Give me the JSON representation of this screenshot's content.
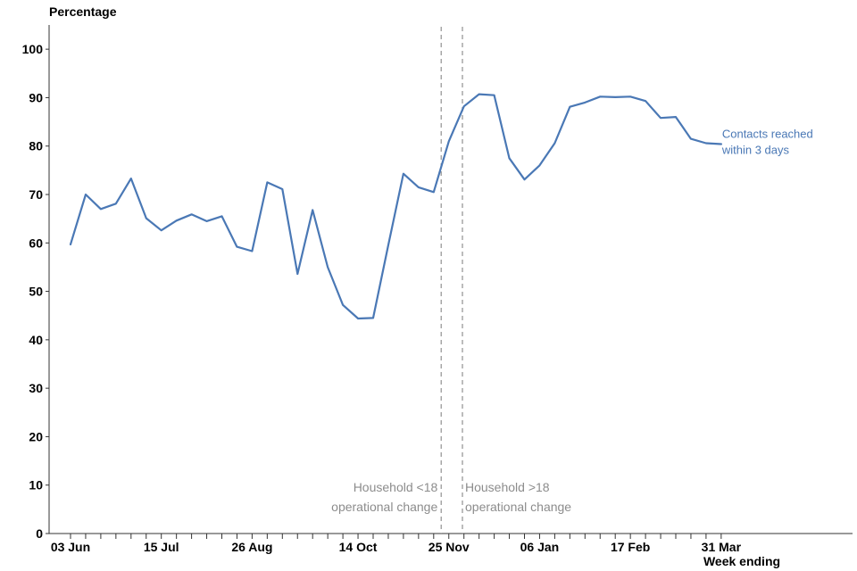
{
  "chart_data": {
    "type": "line",
    "ylabel": "Percentage",
    "xlabel": "Week ending",
    "ylim": [
      0,
      105
    ],
    "yticks": [
      0,
      10,
      20,
      30,
      40,
      50,
      60,
      70,
      80,
      90,
      100
    ],
    "x_tick_labels": [
      {
        "index": 0,
        "label": "03 Jun"
      },
      {
        "index": 6,
        "label": "15 Jul"
      },
      {
        "index": 12,
        "label": "26 Aug"
      },
      {
        "index": 19,
        "label": "14 Oct"
      },
      {
        "index": 25,
        "label": "25 Nov"
      },
      {
        "index": 31,
        "label": "06 Jan"
      },
      {
        "index": 37,
        "label": "17 Feb"
      },
      {
        "index": 43,
        "label": "31 Mar"
      }
    ],
    "series": [
      {
        "name": "Contacts reached within 3 days",
        "label_lines": [
          "Contacts reached",
          "within 3 days"
        ],
        "color": "#4a78b5",
        "values": [
          59.7,
          70.0,
          67.0,
          68.1,
          73.3,
          65.1,
          62.6,
          64.6,
          65.9,
          64.5,
          65.5,
          59.2,
          58.3,
          72.5,
          71.1,
          53.6,
          66.8,
          55.0,
          47.2,
          44.4,
          44.5,
          59.5,
          74.3,
          71.5,
          70.5,
          81.0,
          88.2,
          90.7,
          90.5,
          77.5,
          73.1,
          76.0,
          80.6,
          88.1,
          89.0,
          90.2,
          90.1,
          90.2,
          89.3,
          85.8,
          86.0,
          81.5,
          80.6,
          80.4
        ]
      }
    ],
    "vlines": [
      {
        "x_index": 24.5,
        "label_lines": [
          "Household <18",
          "operational change"
        ],
        "anchor": "end"
      },
      {
        "x_index": 25.9,
        "label_lines": [
          "Household >18",
          "operational change"
        ],
        "anchor": "start"
      }
    ],
    "n_points": 44,
    "grid": false
  }
}
